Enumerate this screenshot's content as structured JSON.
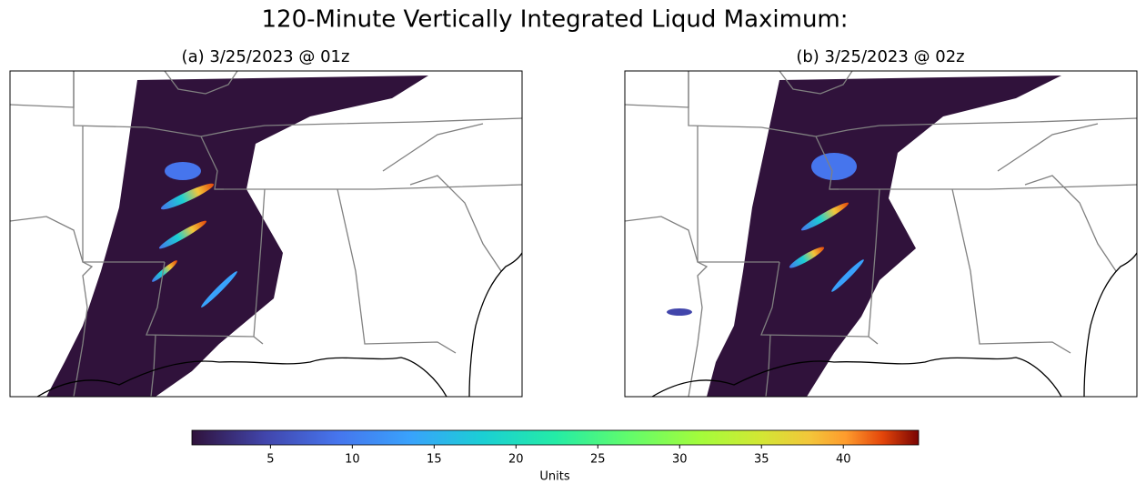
{
  "title": "120-Minute Vertically Integrated Liqud Maximum:",
  "panels": [
    {
      "title": "(a) 3/25/2023 @ 01z"
    },
    {
      "title": "(b) 3/25/2023 @ 02z"
    }
  ],
  "colorbar": {
    "label": "Units",
    "lim": [
      0.2,
      44.6
    ],
    "ticks": [
      5,
      10,
      15,
      20,
      25,
      30,
      35,
      40
    ]
  }
}
